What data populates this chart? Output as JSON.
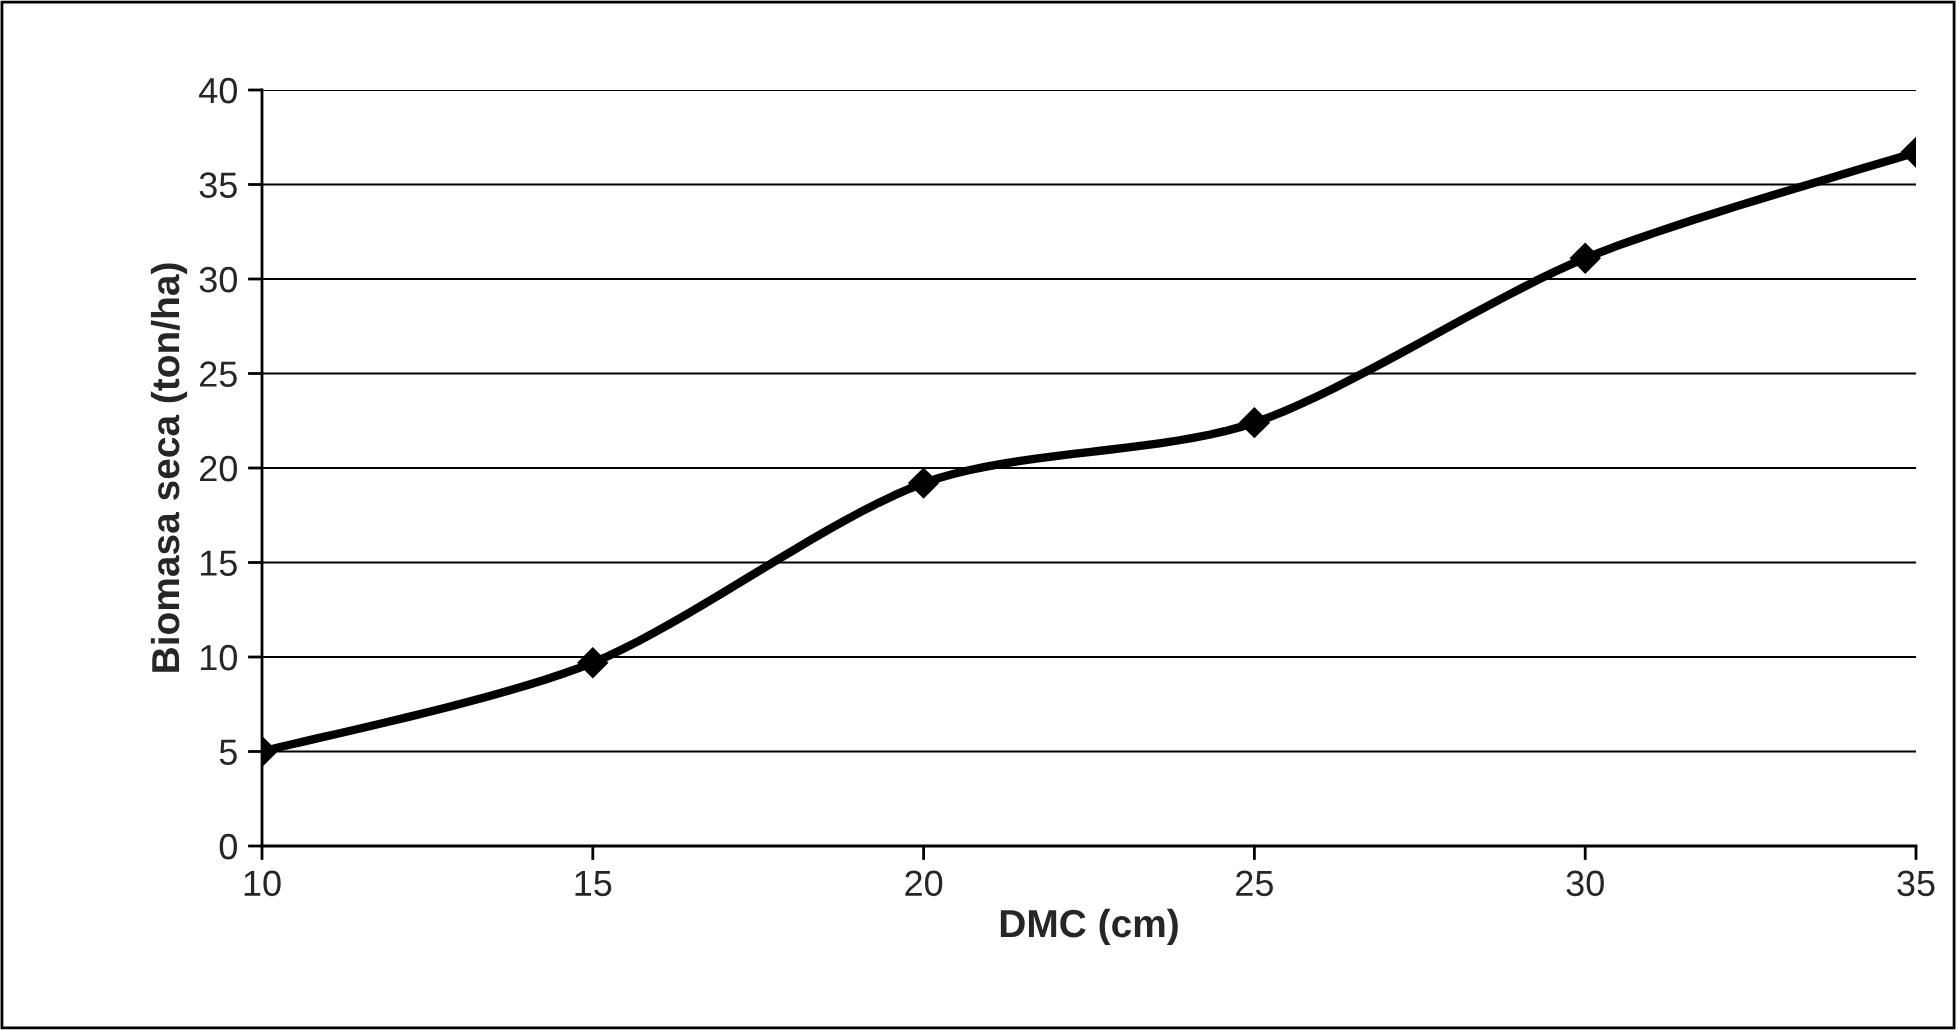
{
  "chart_data": {
    "type": "line",
    "xlabel": "DMC (cm)",
    "ylabel": "Biomasa seca (ton/ha)",
    "x": [
      10,
      15,
      20,
      25,
      30,
      35
    ],
    "series": [
      {
        "color": "#000000",
        "values": [
          5.0,
          9.7,
          19.2,
          22.4,
          31.1,
          36.7
        ]
      }
    ],
    "xlim": [
      10,
      35
    ],
    "xticks": [
      10,
      15,
      20,
      25,
      30,
      35
    ],
    "ylim": [
      0,
      40
    ],
    "yticks": [
      0,
      5,
      10,
      15,
      20,
      25,
      30,
      35,
      40
    ],
    "grid": "y",
    "marker": "diamond",
    "line_style": "solid",
    "legend": false
  }
}
